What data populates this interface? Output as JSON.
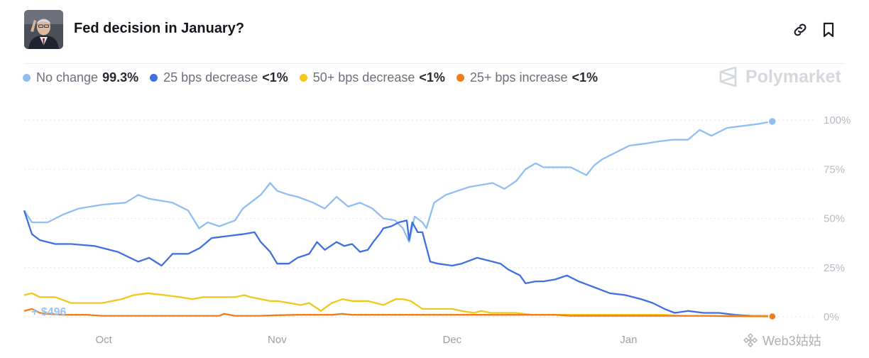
{
  "header": {
    "title": "Fed decision in January?",
    "avatar_icon": "person-portrait-icon",
    "actions": [
      "link-icon",
      "bookmark-icon"
    ]
  },
  "brand": {
    "name": "Polymarket",
    "icon": "polymarket-logo-icon"
  },
  "watermark": {
    "text": "Web3姑姑"
  },
  "legend": [
    {
      "name": "No change",
      "value": "99.3%",
      "color": "#8fbef2"
    },
    {
      "name": "25 bps decrease",
      "value": "<1%",
      "color": "#3f6fe0"
    },
    {
      "name": "50+ bps decrease",
      "value": "<1%",
      "color": "#f1c81c"
    },
    {
      "name": "25+ bps increase",
      "value": "<1%",
      "color": "#f07d1a"
    }
  ],
  "chart_data": {
    "type": "line",
    "ylim": [
      0,
      100
    ],
    "y_ticks": [
      "0%",
      "25%",
      "50%",
      "75%",
      "100%"
    ],
    "y_tick_values": [
      0,
      25,
      50,
      75,
      100
    ],
    "x_range": [
      0,
      100
    ],
    "x_ticks": [
      {
        "label": "Oct",
        "x": 10.2
      },
      {
        "label": "Nov",
        "x": 32.4
      },
      {
        "label": "Dec",
        "x": 54.8
      },
      {
        "label": "Jan",
        "x": 77.4
      }
    ],
    "grid": true,
    "volume_label": "+ $496",
    "series": [
      {
        "name": "No change",
        "color": "#8fbef2",
        "x": [
          0,
          1,
          3,
          5,
          7,
          10,
          13,
          14.6,
          16,
          19,
          21,
          22.4,
          23.5,
          25,
          27,
          28,
          30.3,
          31.5,
          32.4,
          33.9,
          35,
          37,
          38.5,
          40,
          41.5,
          43,
          44.6,
          46,
          47.5,
          48.5,
          49.3,
          50,
          51,
          51.5,
          52.5,
          54,
          55.5,
          57,
          58.5,
          60,
          61.5,
          63,
          64.2,
          65.5,
          66.5,
          68,
          70,
          72,
          73,
          74,
          76,
          77.5,
          79.5,
          81,
          83,
          85,
          86.5,
          88,
          90,
          92,
          94,
          95.8
        ],
        "values": [
          54,
          48,
          48,
          52,
          55,
          57,
          58,
          62,
          60,
          58,
          54,
          45,
          48,
          46,
          49,
          55,
          62,
          68,
          64,
          62,
          61,
          58,
          55,
          61,
          56,
          58,
          55,
          50,
          49,
          45,
          38,
          51,
          48,
          45,
          58,
          62,
          64,
          66,
          67,
          68,
          65,
          69,
          75,
          78,
          76,
          76,
          76,
          72,
          77,
          80,
          84,
          87,
          88,
          89,
          90,
          90,
          95,
          92,
          96,
          97,
          98,
          99.3
        ]
      },
      {
        "name": "25 bps decrease",
        "color": "#3f6fe0",
        "x": [
          0,
          1,
          2,
          4,
          6,
          9,
          12,
          14.6,
          16,
          17.6,
          19,
          21,
          22.5,
          24,
          26,
          28,
          29.5,
          30.3,
          31.5,
          32.4,
          33.9,
          35,
          36.5,
          37.5,
          38.5,
          40,
          41,
          42,
          43,
          44,
          44.7,
          45.5,
          46,
          47,
          48,
          49,
          49.3,
          49.7,
          50.4,
          51,
          52,
          53,
          54.8,
          56,
          58,
          60,
          61,
          62,
          63.5,
          64.2,
          65.5,
          66.5,
          68,
          69.5,
          71,
          73,
          75,
          77,
          79,
          80.5,
          82,
          83.3,
          85,
          87,
          89,
          91,
          93,
          95.8
        ],
        "values": [
          54,
          42,
          39,
          37,
          37,
          36,
          33,
          28,
          30,
          26,
          32,
          32,
          35,
          40,
          41,
          42,
          43,
          38,
          33,
          27,
          27,
          30,
          32,
          38,
          34,
          38,
          36,
          37,
          33,
          34,
          38,
          42,
          45,
          46,
          48,
          49,
          39,
          48,
          43,
          43,
          28,
          27,
          26,
          27,
          30,
          28,
          27,
          24,
          21,
          17,
          18,
          18,
          19,
          21,
          18,
          15,
          12,
          11,
          9,
          7,
          4,
          2,
          3,
          2,
          2,
          1,
          0.5,
          0.4
        ]
      },
      {
        "name": "50+ bps decrease",
        "color": "#f1c81c",
        "x": [
          0,
          1,
          2,
          4,
          6,
          8,
          10,
          12.5,
          14,
          15.8,
          18,
          20,
          21.5,
          23,
          25,
          27,
          28.2,
          29,
          30.3,
          31.5,
          32.4,
          34,
          35.4,
          36.5,
          38,
          39.4,
          40.8,
          42,
          44,
          46,
          47.6,
          48.5,
          49.5,
          51,
          53,
          54.8,
          56,
          57.6,
          58.5,
          59.8,
          61,
          63,
          65,
          67,
          69,
          71,
          72.6,
          74,
          76,
          78,
          80,
          82,
          84,
          85.8,
          87,
          89,
          91,
          93,
          95.8
        ],
        "values": [
          11,
          12,
          10,
          10,
          7,
          7,
          7,
          9,
          11,
          12,
          11,
          10,
          9,
          10,
          10,
          10,
          11,
          10,
          9,
          8,
          8,
          7,
          6,
          7,
          3,
          7,
          9,
          8,
          8,
          6,
          9,
          9,
          8,
          4,
          4,
          4,
          3,
          2,
          3,
          2,
          2,
          2,
          1,
          1,
          1,
          1,
          1,
          1,
          1,
          1,
          1,
          1,
          0.5,
          0.5,
          0.5,
          0.5,
          0.5,
          0.3,
          0.3
        ]
      },
      {
        "name": "25+ bps increase",
        "color": "#f07d1a",
        "x": [
          0,
          1,
          2,
          3,
          5,
          8,
          10,
          13,
          15,
          18,
          20,
          22.4,
          24,
          25,
          25.6,
          27,
          30,
          32.4,
          35,
          37,
          39.5,
          40.7,
          42,
          45,
          48,
          51,
          54.8,
          57,
          60,
          63,
          66,
          68,
          70,
          73,
          76,
          78,
          80,
          82.5,
          85,
          88,
          90,
          92,
          93.5,
          95.8
        ],
        "values": [
          3,
          4,
          2,
          1.5,
          1,
          1,
          0.5,
          0.5,
          0.5,
          0.5,
          0.5,
          0.5,
          0.5,
          0.5,
          1.5,
          0.5,
          0.5,
          0.8,
          1,
          1,
          1,
          1.5,
          1,
          1,
          1,
          1,
          1,
          1,
          1,
          1,
          1,
          1,
          0.5,
          0.5,
          0.5,
          0.5,
          0.5,
          0.5,
          0.5,
          0.5,
          0.3,
          0.3,
          0.2,
          0.2
        ]
      }
    ]
  }
}
